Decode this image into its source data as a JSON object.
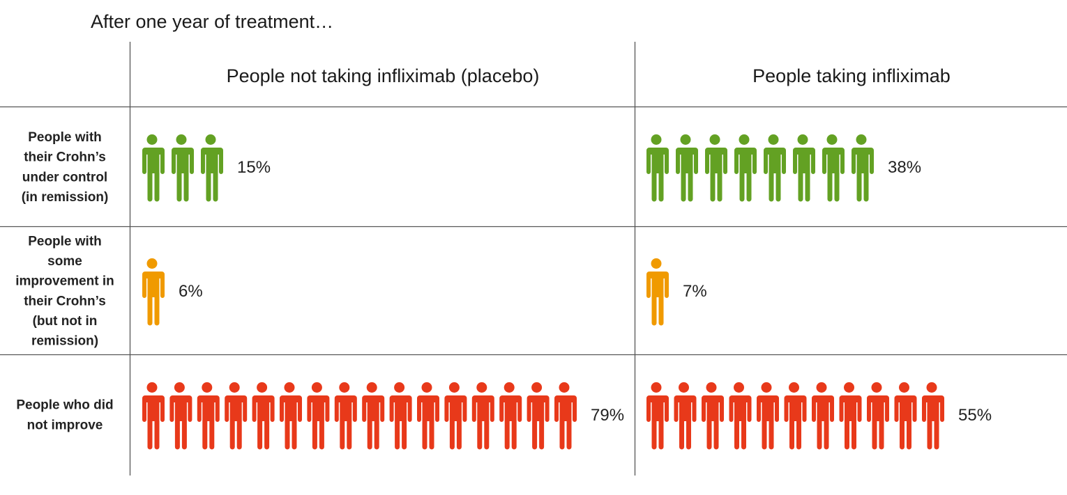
{
  "title": "After one year of treatment…",
  "colors": {
    "remission": "#63a123",
    "improvement": "#f09a00",
    "no_improvement": "#e8391a",
    "grid": "#555555"
  },
  "icon": "person-icon",
  "chart_data": {
    "type": "pictogram",
    "title": "After one year of treatment…",
    "columns": [
      "People not taking infliximab (placebo)",
      "People taking infliximab"
    ],
    "rows": [
      {
        "key": "remission",
        "label_lines": [
          "People with",
          "their Crohn’s",
          "under control",
          "(in remission)"
        ],
        "color": "#63a123"
      },
      {
        "key": "improvement",
        "label_lines": [
          "People with",
          "some",
          "improvement in",
          "their Crohn’s",
          "(but not in",
          "remission)"
        ],
        "color": "#f09a00"
      },
      {
        "key": "no_improvement",
        "label_lines": [
          "People who did",
          "not improve"
        ],
        "color": "#e8391a"
      }
    ],
    "series": [
      {
        "name": "People not taking infliximab (placebo)",
        "values": [
          15,
          6,
          79
        ],
        "labels": [
          "15%",
          "6%",
          "79%"
        ],
        "icons": [
          3,
          1,
          16
        ]
      },
      {
        "name": "People taking infliximab",
        "values": [
          38,
          7,
          55
        ],
        "labels": [
          "38%",
          "7%",
          "55%"
        ],
        "icons": [
          8,
          1,
          11
        ]
      }
    ],
    "unit": "%"
  }
}
